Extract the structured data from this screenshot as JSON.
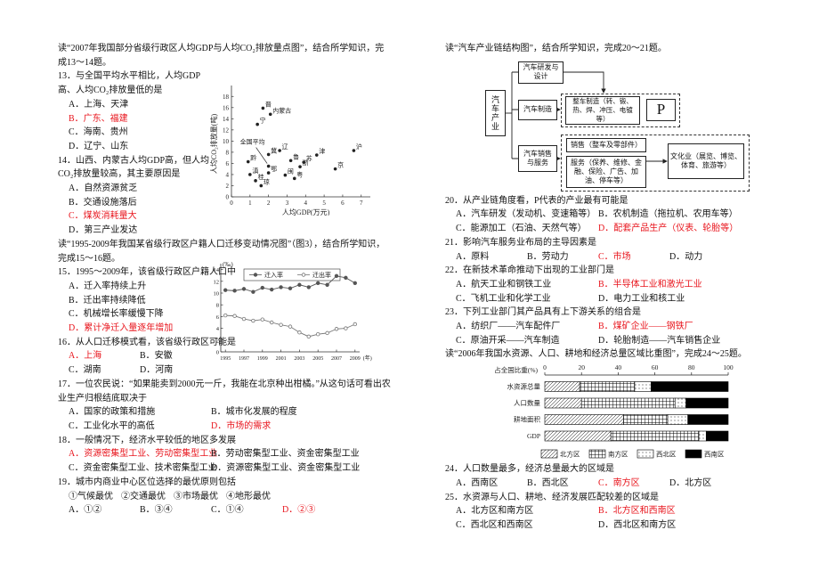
{
  "highlight_color": "#e8141c",
  "left": [
    {
      "text": "读“2007年我国部分省级行政区人均GDP与人均CO₂排放量点图”，结合所学知识，完成13～14题。"
    },
    {
      "text": "13．与全国平均水平相比，人均GDP高、人均CO₂排放量低的是",
      "per_row": 1,
      "highlighted": 1,
      "options": [
        {
          "label": "A．",
          "text": "上海、天津"
        },
        {
          "label": "B．",
          "text": "广东、福建"
        },
        {
          "label": "C．",
          "text": "海南、贵州"
        },
        {
          "label": "D．",
          "text": "辽宁、山东"
        }
      ]
    },
    {
      "text": "14．山西、内蒙古人均GDP高，但人均CO₂排放量较高，其主要原因是",
      "per_row": 1,
      "highlighted": 2,
      "options": [
        {
          "label": "A．",
          "text": "自然资源贫乏"
        },
        {
          "label": "B．",
          "text": "交通设施落后"
        },
        {
          "label": "C．",
          "text": "煤炭消耗量大"
        },
        {
          "label": "D．",
          "text": "第三产业发达"
        }
      ]
    },
    {
      "text": "读“1995-2009年我国某省级行政区户籍人口迁移变动情况图”（图3），结合所学知识，完成15～16题。"
    },
    {
      "text": "15．1995～2009年，该省级行政区户籍人口中",
      "per_row": 1,
      "highlighted": 3,
      "options": [
        {
          "label": "A．",
          "text": "迁入率持续上升"
        },
        {
          "label": "B．",
          "text": "迁出率持续降低"
        },
        {
          "label": "C．",
          "text": "机械增长率缓慢下降"
        },
        {
          "label": "D．",
          "text": "累计净迁入量逐年增加"
        }
      ]
    },
    {
      "text": "16．从人口迁移模式看，该省级行政区可能是",
      "per_row": 2,
      "highlighted": 0,
      "options": [
        {
          "label": "A．",
          "text": "上海"
        },
        {
          "label": "B．",
          "text": "安徽"
        },
        {
          "label": "C．",
          "text": "湖南"
        },
        {
          "label": "D．",
          "text": "河南"
        }
      ]
    },
    {
      "text": "17．一位农民说：“如果能卖到2000元一斤，我能在北京种出柑橘。”从这句话可看出农业生产归根结底取决于",
      "per_row": 2,
      "highlighted": 3,
      "options": [
        {
          "label": "A．",
          "text": "国家的政策和措施"
        },
        {
          "label": "B．",
          "text": "城市化发展的程度"
        },
        {
          "label": "C．",
          "text": "工业化水平的高低"
        },
        {
          "label": "D．",
          "text": "市场的需求"
        }
      ]
    },
    {
      "text": "18．一般情况下，经济水平较低的地区多发展",
      "per_row": 2,
      "highlighted": 0,
      "options": [
        {
          "label": "A．",
          "text": "资源密集型工业、劳动密集型工业"
        },
        {
          "label": "B．",
          "text": "劳动密集型工业、资金密集型工业"
        },
        {
          "label": "C．",
          "text": "资金密集型工业、技术密集型工业"
        },
        {
          "label": "D．",
          "text": "资源密集型工业、资金密集型工业"
        }
      ]
    },
    {
      "text": "19．城市内商业中心区位选择的最优原则包括",
      "items": [
        "①气候最优",
        "②交通最优",
        "③市场最优",
        "④地形最优"
      ],
      "per_row": 4,
      "highlighted": 3,
      "options": [
        {
          "label": "A．",
          "text": "①②"
        },
        {
          "label": "B．",
          "text": "③④"
        },
        {
          "label": "C．",
          "text": "①④"
        },
        {
          "label": "D．",
          "text": "②③"
        }
      ]
    }
  ],
  "right": [
    {
      "text": "读“汽车产业链结构图”，结合所学知识，完成20～21题。"
    },
    {
      "text": "20．从产业链角度看，P代表的产业最有可能是",
      "per_row": 2,
      "highlighted": 3,
      "options": [
        {
          "label": "A．",
          "text": "汽车研发（发动机、变速箱等）"
        },
        {
          "label": "B．",
          "text": "农机制造（拖拉机、农用车等）"
        },
        {
          "label": "C．",
          "text": "能源加工（石油、天然气等）"
        },
        {
          "label": "D．",
          "text": "配套产品生产（仪表、轮胎等）"
        }
      ]
    },
    {
      "text": "21．影响汽车服务业布局的主导因素是",
      "per_row": 4,
      "highlighted": 2,
      "options": [
        {
          "label": "A．",
          "text": "原料"
        },
        {
          "label": "B．",
          "text": "劳动力"
        },
        {
          "label": "C．",
          "text": "市场"
        },
        {
          "label": "D．",
          "text": "动力"
        }
      ]
    },
    {
      "text": "22．在新技术革命推动下出现的工业部门是",
      "per_row": 2,
      "highlighted": 1,
      "options": [
        {
          "label": "A．",
          "text": "航天工业和钢铁工业"
        },
        {
          "label": "B．",
          "text": "半导体工业和激光工业"
        },
        {
          "label": "C．",
          "text": "飞机工业和化学工业"
        },
        {
          "label": "D．",
          "text": "电力工业和核工业"
        }
      ]
    },
    {
      "text": "23．下列工业部门其产品具有上下游关系的组合是",
      "per_row": 2,
      "highlighted": 1,
      "options": [
        {
          "label": "A．",
          "text": "纺织厂——汽车配件厂"
        },
        {
          "label": "B．",
          "text": "煤矿企业——钢铁厂"
        },
        {
          "label": "C．",
          "text": "原油开采——汽车制造"
        },
        {
          "label": "D．",
          "text": "轮胎制造——汽车销售企业"
        }
      ]
    },
    {
      "text": "读“2006年我国水资源、人口、耕地和经济总量区域比重图”，完成24～25题。"
    },
    {
      "text": "24．人口数量最多，经济总量最大的区域是",
      "per_row": 4,
      "highlighted": 2,
      "options": [
        {
          "label": "A．",
          "text": "西南区"
        },
        {
          "label": "B．",
          "text": "西北区"
        },
        {
          "label": "C．",
          "text": "南方区"
        },
        {
          "label": "D．",
          "text": "北方区"
        }
      ]
    },
    {
      "text": "25．水资源与人口、耕地、经济发展匹配较差的区域是",
      "per_row": 2,
      "highlighted": 1,
      "options": [
        {
          "label": "A．",
          "text": "北方区和南方区"
        },
        {
          "label": "B．",
          "text": "北方区和西南区"
        },
        {
          "label": "C．",
          "text": "西北区和西南区"
        },
        {
          "label": "D．",
          "text": "西北区和南方区"
        }
      ]
    }
  ],
  "diagram": {
    "industry": "汽车产业",
    "research": "汽车研发与设计",
    "manufacturing": "汽车制造",
    "vehicle_making": "整车制造（转、锻、热、焊、冲压、电镀等）",
    "p": "P",
    "sales_service": "汽车销售与服务",
    "sales": "销售（整车及零部件）",
    "service": "服务（保养、维修、金融、保险、广告、加油、停车等）",
    "culture": "文化业（展览、博览、体育、旅游等）"
  },
  "chart_data": [
    {
      "type": "scatter",
      "xlabel": "人均GDP(万元)",
      "ylabel": "人均CO₂排放量(吨)",
      "color": "#222222",
      "grid": false,
      "labels": [
        "晋",
        "内蒙古",
        "宁",
        "冀",
        "辽",
        "津",
        "沪",
        "京",
        "鲁",
        "苏",
        "浙",
        "闽",
        "粤",
        "黔",
        "滇",
        "桂",
        "鄂",
        "琼"
      ],
      "x": [
        1.7,
        2.1,
        1.4,
        2.0,
        2.6,
        4.6,
        6.6,
        5.6,
        3.2,
        3.9,
        3.7,
        2.9,
        3.4,
        0.9,
        1.0,
        1.3,
        2.0,
        1.6
      ],
      "values": [
        15.9,
        14.8,
        13.0,
        7.6,
        8.3,
        7.5,
        8.3,
        5.0,
        6.5,
        6.2,
        5.4,
        3.9,
        3.3,
        6.3,
        4.0,
        2.9,
        4.3,
        2.0
      ],
      "mean": {
        "label": "全国平均",
        "x": 2.0,
        "y": 5.5
      },
      "xlim": [
        0,
        7.3
      ],
      "ylim": [
        0,
        19
      ],
      "xticks": [
        0,
        1,
        2,
        3,
        4,
        5,
        6,
        7
      ],
      "yticks": [
        0,
        2,
        4,
        6,
        8,
        10,
        12,
        14,
        16,
        18
      ]
    },
    {
      "type": "line",
      "xlabel": "(年)",
      "ylabel": "(‰)",
      "legend": "top",
      "grid": false,
      "x": [
        1995,
        1996,
        1997,
        1998,
        1999,
        2000,
        2001,
        2002,
        2003,
        2004,
        2005,
        2006,
        2007,
        2008,
        2009
      ],
      "series": [
        {
          "name": "迁入率",
          "color": "#555555",
          "marker": "filled",
          "values": [
            10.5,
            10.4,
            10.7,
            10.2,
            10.9,
            10.6,
            11.0,
            10.8,
            11.4,
            11.0,
            11.7,
            11.4,
            12.9,
            12.6,
            11.7
          ]
        },
        {
          "name": "迁出率",
          "color": "#777777",
          "marker": "hollow",
          "values": [
            6.2,
            6.1,
            5.6,
            5.3,
            5.5,
            5.0,
            4.6,
            4.3,
            3.3,
            2.6,
            3.0,
            3.2,
            3.9,
            4.0,
            4.7
          ]
        }
      ],
      "xlim": [
        1994.5,
        2009.5
      ],
      "ylim": [
        0,
        15
      ],
      "xticks": [
        1995,
        1997,
        1999,
        2001,
        2003,
        2005,
        2007,
        2009
      ],
      "yticks": [
        0,
        2,
        4,
        6,
        8,
        10,
        12,
        14
      ]
    },
    {
      "type": "bar",
      "stacked": true,
      "xlabel": "占全国比重(%)",
      "legend": "bottom",
      "grid": false,
      "categories": [
        "水资源总量",
        "人口数量",
        "耕地面积",
        "GDP"
      ],
      "series": [
        {
          "name": "北方区",
          "color": "#000000",
          "pattern": "diagonal",
          "values": [
            19,
            20,
            43,
            36
          ]
        },
        {
          "name": "南方区",
          "color": "#000000",
          "pattern": "grid",
          "values": [
            30,
            51,
            24,
            48
          ]
        },
        {
          "name": "西北区",
          "color": "#000000",
          "pattern": "dots",
          "values": [
            9,
            6,
            11,
            4
          ]
        },
        {
          "name": "西南区",
          "color": "#000000",
          "pattern": "solid",
          "values": [
            42,
            23,
            22,
            12
          ]
        }
      ],
      "xlim": [
        0,
        100
      ],
      "xticks": [
        0,
        20,
        40,
        60,
        80,
        100
      ]
    }
  ]
}
